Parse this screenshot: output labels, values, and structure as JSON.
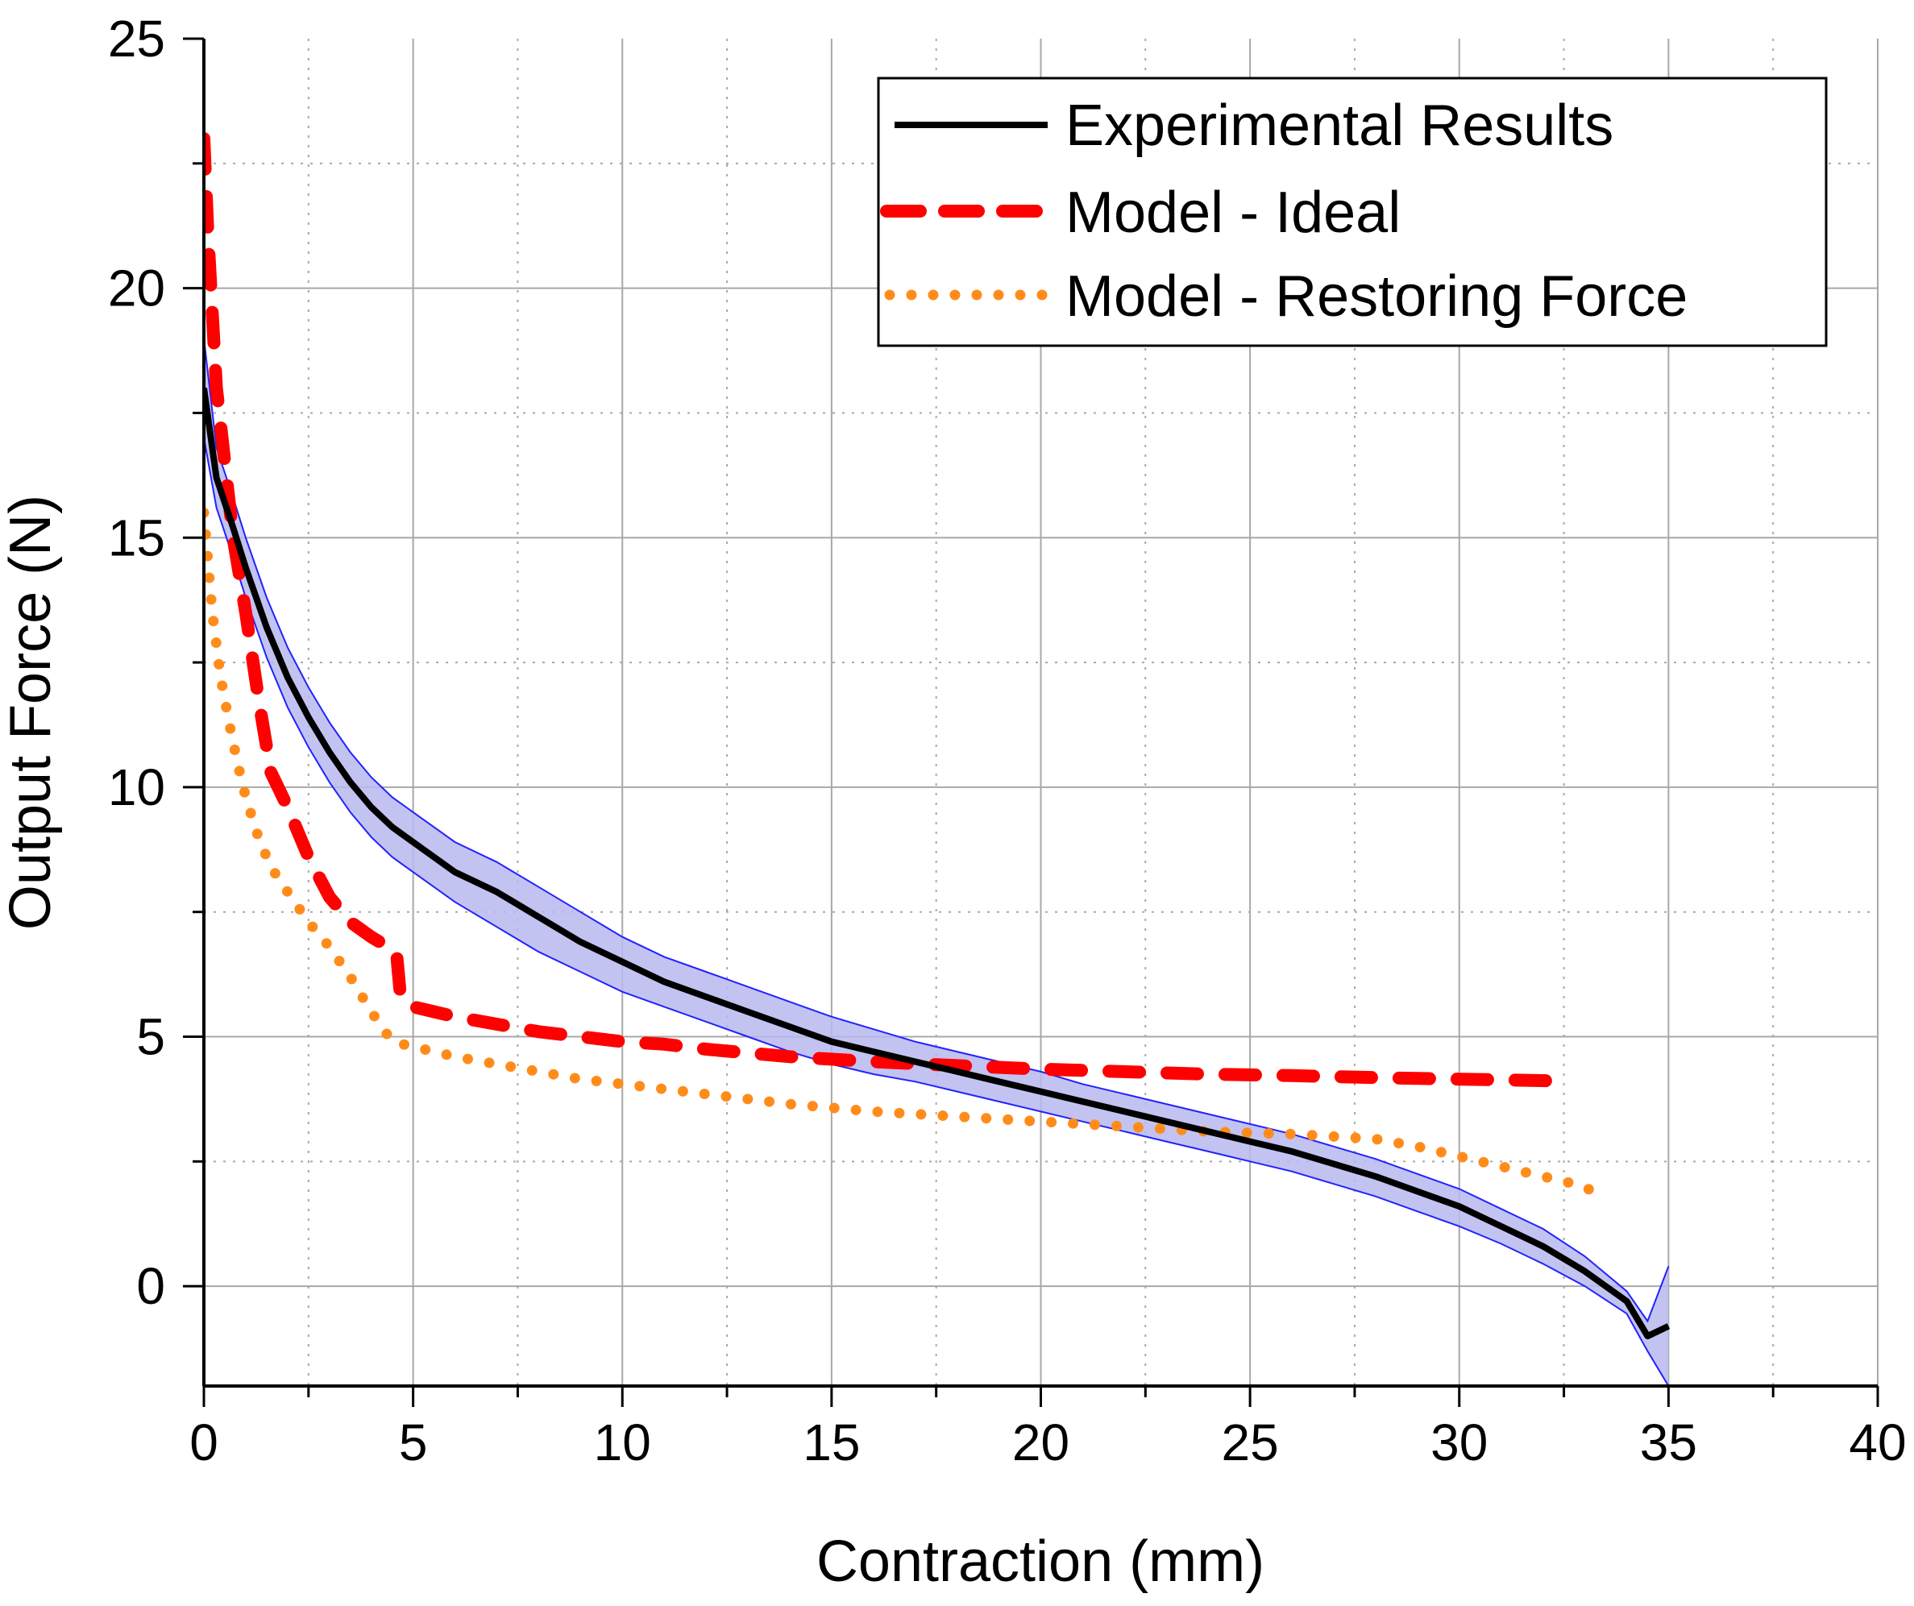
{
  "chart_data": {
    "type": "line",
    "title": "",
    "xlabel": "Contraction (mm)",
    "ylabel": "Output Force (N)",
    "xlim": [
      0,
      40
    ],
    "ylim": [
      -2,
      25
    ],
    "xticks": [
      0,
      5,
      10,
      15,
      20,
      25,
      30,
      35,
      40
    ],
    "yticks": [
      0,
      5,
      10,
      15,
      20,
      25
    ],
    "grid": true,
    "legend_position": "top-right",
    "colors": {
      "experimental": "#000000",
      "ideal": "#ff0000",
      "restoring": "#ff8c1a",
      "band_stroke": "#2222ff",
      "band_fill": "#b8b8f0",
      "grid": "#a8a8a8"
    },
    "series": [
      {
        "name": "Experimental Results",
        "style": "solid",
        "x": [
          0,
          0.3,
          0.7,
          1,
          1.5,
          2,
          2.5,
          3,
          3.5,
          4,
          4.5,
          5,
          6,
          7,
          8,
          9,
          10,
          11,
          12,
          13,
          14,
          15,
          16,
          17,
          18,
          19,
          20,
          21,
          22,
          23,
          24,
          25,
          26,
          27,
          28,
          29,
          30,
          31,
          32,
          33,
          34,
          34.5,
          35
        ],
        "y": [
          18.0,
          16.2,
          15.2,
          14.4,
          13.2,
          12.2,
          11.4,
          10.7,
          10.1,
          9.6,
          9.2,
          8.9,
          8.3,
          7.9,
          7.4,
          6.9,
          6.5,
          6.1,
          5.8,
          5.5,
          5.2,
          4.9,
          4.7,
          4.5,
          4.3,
          4.1,
          3.9,
          3.7,
          3.5,
          3.3,
          3.1,
          2.9,
          2.7,
          2.45,
          2.2,
          1.9,
          1.6,
          1.2,
          0.8,
          0.3,
          -0.3,
          -1.0,
          -0.8
        ]
      },
      {
        "name": "Experimental Results band upper",
        "style": "band-upper",
        "x": [
          0,
          0.3,
          0.7,
          1,
          1.5,
          2,
          2.5,
          3,
          3.5,
          4,
          4.5,
          5,
          6,
          7,
          8,
          9,
          10,
          11,
          12,
          13,
          14,
          15,
          16,
          17,
          18,
          19,
          20,
          21,
          22,
          23,
          24,
          25,
          26,
          27,
          28,
          29,
          30,
          31,
          32,
          33,
          34,
          34.5,
          35
        ],
        "y": [
          19.0,
          16.8,
          15.8,
          15.0,
          13.8,
          12.8,
          12.0,
          11.3,
          10.7,
          10.2,
          9.8,
          9.5,
          8.9,
          8.5,
          8.0,
          7.5,
          7.0,
          6.6,
          6.3,
          6.0,
          5.7,
          5.4,
          5.15,
          4.9,
          4.7,
          4.5,
          4.3,
          4.05,
          3.85,
          3.65,
          3.45,
          3.25,
          3.05,
          2.8,
          2.55,
          2.25,
          1.95,
          1.55,
          1.15,
          0.6,
          -0.1,
          -0.7,
          0.4
        ]
      },
      {
        "name": "Experimental Results band lower",
        "style": "band-lower",
        "x": [
          0,
          0.3,
          0.7,
          1,
          1.5,
          2,
          2.5,
          3,
          3.5,
          4,
          4.5,
          5,
          6,
          7,
          8,
          9,
          10,
          11,
          12,
          13,
          14,
          15,
          16,
          17,
          18,
          19,
          20,
          21,
          22,
          23,
          24,
          25,
          26,
          27,
          28,
          29,
          30,
          31,
          32,
          33,
          34,
          34.5,
          35
        ],
        "y": [
          17.0,
          15.6,
          14.6,
          13.8,
          12.6,
          11.6,
          10.8,
          10.1,
          9.5,
          9.0,
          8.6,
          8.3,
          7.7,
          7.2,
          6.7,
          6.3,
          5.9,
          5.6,
          5.3,
          5.0,
          4.7,
          4.45,
          4.25,
          4.1,
          3.9,
          3.7,
          3.5,
          3.3,
          3.1,
          2.9,
          2.7,
          2.5,
          2.3,
          2.05,
          1.8,
          1.5,
          1.2,
          0.85,
          0.45,
          0.0,
          -0.55,
          -1.3,
          -2.0
        ]
      },
      {
        "name": "Model - Ideal",
        "style": "dashed",
        "x": [
          0,
          0.1,
          0.2,
          0.3,
          0.5,
          0.7,
          1,
          1.3,
          1.6,
          2,
          2.5,
          3,
          3.5,
          4,
          4.6,
          4.7,
          5,
          6,
          7,
          8,
          9,
          10,
          11,
          12,
          14,
          16,
          18,
          20,
          22,
          24,
          26,
          28,
          30,
          32,
          32.5
        ],
        "y": [
          23.0,
          21.0,
          19.5,
          18.0,
          16.5,
          15.0,
          13.5,
          11.8,
          10.3,
          9.6,
          8.6,
          7.8,
          7.3,
          7.0,
          6.7,
          5.8,
          5.6,
          5.4,
          5.25,
          5.1,
          5.0,
          4.9,
          4.85,
          4.75,
          4.6,
          4.5,
          4.42,
          4.35,
          4.3,
          4.25,
          4.22,
          4.18,
          4.15,
          4.12,
          4.1
        ]
      },
      {
        "name": "Model - Restoring Force",
        "style": "dotted",
        "x": [
          0,
          0.1,
          0.2,
          0.4,
          0.6,
          0.8,
          1,
          1.3,
          1.6,
          2,
          2.5,
          3,
          3.5,
          4,
          4.5,
          5,
          6,
          7,
          8,
          9,
          10,
          11,
          12,
          14,
          16,
          18,
          20,
          22,
          23,
          24,
          25,
          26,
          27,
          28,
          29,
          30,
          31,
          32,
          33,
          33.5
        ],
        "y": [
          15.5,
          14.5,
          13.5,
          12.2,
          11.3,
          10.5,
          9.8,
          9.0,
          8.4,
          7.9,
          7.3,
          6.8,
          6.2,
          5.5,
          4.9,
          4.8,
          4.6,
          4.45,
          4.3,
          4.15,
          4.05,
          3.95,
          3.85,
          3.65,
          3.5,
          3.4,
          3.3,
          3.2,
          3.15,
          3.1,
          3.07,
          3.05,
          3.0,
          2.95,
          2.8,
          2.6,
          2.4,
          2.2,
          2.0,
          1.7
        ]
      }
    ]
  }
}
